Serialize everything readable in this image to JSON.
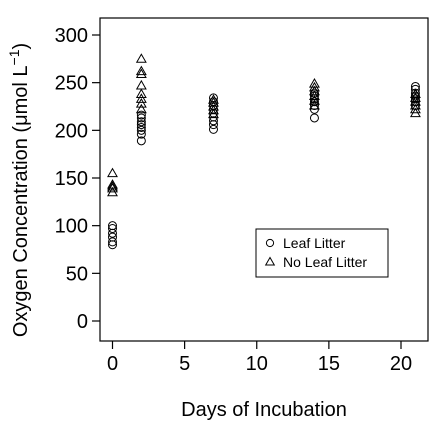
{
  "chart_data": {
    "type": "scatter",
    "xlabel": "Days of Incubation",
    "ylabel_main": "Oxygen Concentration (",
    "ylabel_mu": "μ",
    "ylabel_unit": "mol L",
    "ylabel_exp": "−1",
    "ylabel_close": ")",
    "xlim": [
      -1,
      22
    ],
    "ylim": [
      0,
      300
    ],
    "x_ticks": [
      0,
      5,
      10,
      15,
      20
    ],
    "y_ticks": [
      0,
      50,
      100,
      150,
      200,
      250,
      300
    ],
    "grid": false,
    "legend_position": "lower-right",
    "series": [
      {
        "name": "Leaf Litter",
        "marker": "circle",
        "points": [
          [
            0,
            80
          ],
          [
            0,
            83
          ],
          [
            0,
            88
          ],
          [
            0,
            92
          ],
          [
            0,
            97
          ],
          [
            0,
            100
          ],
          [
            2,
            189
          ],
          [
            2,
            196
          ],
          [
            2,
            200
          ],
          [
            2,
            203
          ],
          [
            2,
            206
          ],
          [
            2,
            209
          ],
          [
            2,
            213
          ],
          [
            2,
            216
          ],
          [
            7,
            201
          ],
          [
            7,
            206
          ],
          [
            7,
            210
          ],
          [
            7,
            214
          ],
          [
            7,
            218
          ],
          [
            7,
            222
          ],
          [
            7,
            226
          ],
          [
            7,
            230
          ],
          [
            7,
            234
          ],
          [
            14,
            213
          ],
          [
            14,
            222
          ],
          [
            14,
            226
          ],
          [
            14,
            230
          ],
          [
            14,
            233
          ],
          [
            14,
            236
          ],
          [
            14,
            239
          ],
          [
            21,
            226
          ],
          [
            21,
            230
          ],
          [
            21,
            233
          ],
          [
            21,
            236
          ],
          [
            21,
            239
          ],
          [
            21,
            243
          ],
          [
            21,
            246
          ]
        ]
      },
      {
        "name": "No Leaf Litter",
        "marker": "triangle",
        "points": [
          [
            0,
            135
          ],
          [
            0,
            139
          ],
          [
            0,
            141
          ],
          [
            0,
            143
          ],
          [
            0,
            155
          ],
          [
            2,
            222
          ],
          [
            2,
            228
          ],
          [
            2,
            233
          ],
          [
            2,
            238
          ],
          [
            2,
            247
          ],
          [
            2,
            259
          ],
          [
            2,
            262
          ],
          [
            2,
            275
          ],
          [
            7,
            217
          ],
          [
            7,
            221
          ],
          [
            7,
            225
          ],
          [
            7,
            229
          ],
          [
            7,
            232
          ],
          [
            14,
            226
          ],
          [
            14,
            231
          ],
          [
            14,
            236
          ],
          [
            14,
            241
          ],
          [
            14,
            245
          ],
          [
            14,
            249
          ],
          [
            21,
            218
          ],
          [
            21,
            222
          ],
          [
            21,
            226
          ],
          [
            21,
            230
          ],
          [
            21,
            234
          ],
          [
            21,
            238
          ]
        ]
      }
    ]
  }
}
